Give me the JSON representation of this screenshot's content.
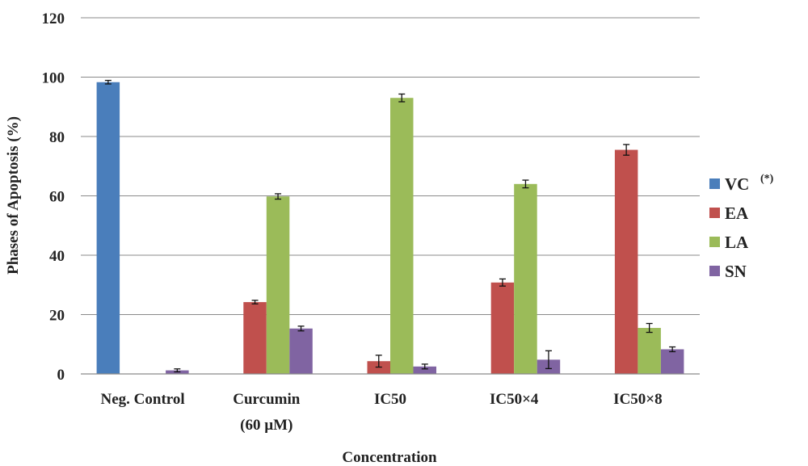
{
  "chart_data": {
    "type": "bar",
    "xlabel": "Concentration",
    "ylabel": "Phases of Apoptosis (%)",
    "ylim": [
      0,
      120
    ],
    "yticks": [
      0,
      20,
      40,
      60,
      80,
      100,
      120
    ],
    "grid": true,
    "legend_position": "right",
    "categories": [
      [
        "Neg. Control"
      ],
      [
        "Curcumin",
        "(60 µM)"
      ],
      [
        "IC50"
      ],
      [
        "IC50×4"
      ],
      [
        "IC50×8"
      ]
    ],
    "series": [
      {
        "name": "VC",
        "superscript": "(*)",
        "color": "#4a7ebb",
        "values": [
          98.3,
          0,
          0,
          0,
          0
        ],
        "errors": [
          0.6,
          0,
          0,
          0,
          0
        ]
      },
      {
        "name": "EA",
        "color": "#c0504d",
        "values": [
          0,
          24.2,
          4.3,
          30.8,
          75.5
        ],
        "errors": [
          0,
          0.6,
          2.0,
          1.2,
          1.8
        ]
      },
      {
        "name": "LA",
        "color": "#9bbb59",
        "values": [
          0,
          59.8,
          93.0,
          64.0,
          15.5
        ],
        "errors": [
          0,
          0.9,
          1.3,
          1.3,
          1.5
        ]
      },
      {
        "name": "SN",
        "color": "#8064a2",
        "values": [
          1.2,
          15.3,
          2.5,
          4.8,
          8.3
        ],
        "errors": [
          0.5,
          0.8,
          0.8,
          3.0,
          0.8
        ]
      }
    ]
  }
}
